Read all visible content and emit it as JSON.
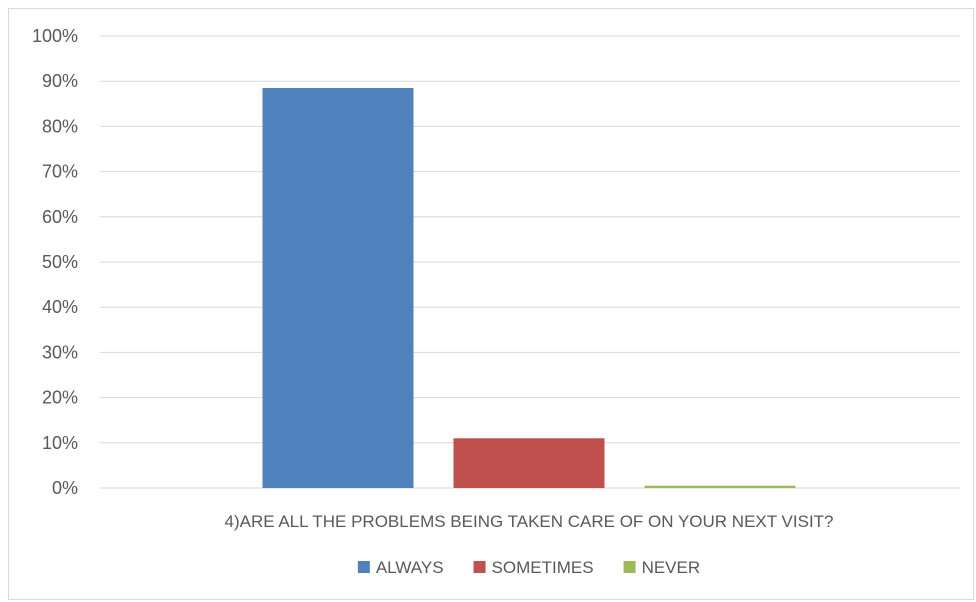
{
  "chart_data": {
    "type": "bar",
    "categories": [
      "4)ARE ALL THE PROBLEMS BEING TAKEN CARE OF ON YOUR NEXT VISIT?"
    ],
    "series": [
      {
        "name": "ALWAYS",
        "values": [
          88.5
        ],
        "color": "#4f81bd"
      },
      {
        "name": "SOMETIMES",
        "values": [
          11
        ],
        "color": "#c0504d"
      },
      {
        "name": "NEVER",
        "values": [
          0.5
        ],
        "color": "#9bbb59"
      }
    ],
    "yticks": [
      "0%",
      "10%",
      "20%",
      "30%",
      "40%",
      "50%",
      "60%",
      "70%",
      "80%",
      "90%",
      "100%"
    ],
    "ylim": [
      0,
      100
    ],
    "grid": true,
    "legend": "bottom",
    "gridline_color": "#d9d9d9"
  }
}
